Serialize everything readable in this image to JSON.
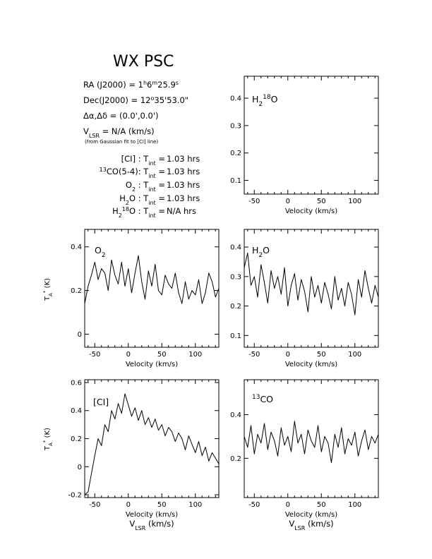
{
  "source": {
    "name": "WX PSC",
    "ra": "RA (J2000) = 1h6m25.9s",
    "dec": "Dec(J2000) = 12°35'53.0\"",
    "offset": "Δα,Δδ = (0.0',0.0')",
    "vlsr": "VLSR = N/A (km/s)",
    "vlsr_note": "(from Gaussian fit to [CI] line)"
  },
  "integrations": [
    {
      "line": "[CI]",
      "value": "1.03 hrs"
    },
    {
      "line": "13CO(5-4)",
      "value": "1.03 hrs"
    },
    {
      "line": "O2",
      "value": "1.03 hrs"
    },
    {
      "line": "H2O",
      "value": "1.03 hrs"
    },
    {
      "line": "H2 18O",
      "value": "N/A hrs"
    }
  ],
  "axis_text": {
    "x_label": "Velocity (km/s)",
    "x_bottom_label": "VLSR (km/s)",
    "y_label": "TA* (K)"
  },
  "chart_data": [
    {
      "type": "line",
      "label": "H2 18O",
      "panel": "top-right",
      "xlim": [
        -65,
        135
      ],
      "ylim": [
        0.05,
        0.48
      ],
      "xticks": [
        -50,
        0,
        50,
        100
      ],
      "yticks": [
        0.1,
        0.2,
        0.3,
        0.4
      ],
      "series": []
    },
    {
      "type": "line",
      "label": "O2",
      "panel": "middle-left",
      "xlim": [
        -65,
        135
      ],
      "ylim": [
        -0.06,
        0.48
      ],
      "xticks": [
        -50,
        0,
        50,
        100
      ],
      "yticks": [
        0,
        0.2,
        0.4
      ],
      "series": [
        {
          "x": [
            -65,
            -60,
            -55,
            -50,
            -45,
            -40,
            -35,
            -30,
            -25,
            -20,
            -15,
            -10,
            -5,
            0,
            5,
            10,
            15,
            20,
            25,
            30,
            35,
            40,
            45,
            50,
            55,
            60,
            65,
            70,
            75,
            80,
            85,
            90,
            95,
            100,
            105,
            110,
            115,
            120,
            125,
            130,
            135
          ],
          "y": [
            0.14,
            0.22,
            0.27,
            0.33,
            0.25,
            0.3,
            0.28,
            0.2,
            0.34,
            0.27,
            0.23,
            0.33,
            0.22,
            0.3,
            0.19,
            0.28,
            0.36,
            0.24,
            0.16,
            0.29,
            0.22,
            0.32,
            0.2,
            0.18,
            0.27,
            0.23,
            0.21,
            0.28,
            0.19,
            0.14,
            0.24,
            0.16,
            0.2,
            0.18,
            0.25,
            0.14,
            0.19,
            0.28,
            0.24,
            0.17,
            0.21
          ]
        }
      ]
    },
    {
      "type": "line",
      "label": "H2O",
      "panel": "middle-right",
      "xlim": [
        -65,
        135
      ],
      "ylim": [
        0.06,
        0.46
      ],
      "xticks": [
        -50,
        0,
        50,
        100
      ],
      "yticks": [
        0.1,
        0.2,
        0.3,
        0.4
      ],
      "series": [
        {
          "x": [
            -65,
            -60,
            -55,
            -50,
            -45,
            -40,
            -35,
            -30,
            -25,
            -20,
            -15,
            -10,
            -5,
            0,
            5,
            10,
            15,
            20,
            25,
            30,
            35,
            40,
            45,
            50,
            55,
            60,
            65,
            70,
            75,
            80,
            85,
            90,
            95,
            100,
            105,
            110,
            115,
            120,
            125,
            130,
            135
          ],
          "y": [
            0.33,
            0.38,
            0.27,
            0.3,
            0.23,
            0.34,
            0.28,
            0.21,
            0.32,
            0.26,
            0.3,
            0.24,
            0.33,
            0.2,
            0.27,
            0.31,
            0.22,
            0.29,
            0.25,
            0.18,
            0.3,
            0.23,
            0.27,
            0.21,
            0.28,
            0.24,
            0.19,
            0.3,
            0.22,
            0.26,
            0.2,
            0.28,
            0.24,
            0.17,
            0.29,
            0.23,
            0.32,
            0.26,
            0.21,
            0.27,
            0.23
          ]
        }
      ]
    },
    {
      "type": "line",
      "label": "[CI]",
      "panel": "bottom-left",
      "xlim": [
        -65,
        135
      ],
      "ylim": [
        -0.22,
        0.62
      ],
      "xticks": [
        -50,
        0,
        50,
        100
      ],
      "yticks": [
        -0.2,
        0,
        0.2,
        0.4,
        0.6
      ],
      "series": [
        {
          "x": [
            -65,
            -60,
            -55,
            -50,
            -45,
            -40,
            -35,
            -30,
            -25,
            -20,
            -15,
            -10,
            -5,
            0,
            5,
            10,
            15,
            20,
            25,
            30,
            35,
            40,
            45,
            50,
            55,
            60,
            65,
            70,
            75,
            80,
            85,
            90,
            95,
            100,
            105,
            110,
            115,
            120,
            125,
            130,
            135
          ],
          "y": [
            -0.2,
            -0.18,
            -0.05,
            0.08,
            0.2,
            0.15,
            0.3,
            0.25,
            0.4,
            0.34,
            0.45,
            0.38,
            0.52,
            0.44,
            0.36,
            0.42,
            0.33,
            0.4,
            0.3,
            0.35,
            0.28,
            0.34,
            0.26,
            0.3,
            0.22,
            0.28,
            0.25,
            0.18,
            0.24,
            0.2,
            0.12,
            0.22,
            0.16,
            0.1,
            0.18,
            0.08,
            0.14,
            0.04,
            0.1,
            0.06,
            0.02
          ]
        }
      ]
    },
    {
      "type": "line",
      "label": "13CO",
      "panel": "bottom-right",
      "xlim": [
        -65,
        135
      ],
      "ylim": [
        0.02,
        0.56
      ],
      "xticks": [
        -50,
        0,
        50,
        100
      ],
      "yticks": [
        0.2,
        0.4
      ],
      "series": [
        {
          "x": [
            -65,
            -60,
            -55,
            -50,
            -45,
            -40,
            -35,
            -30,
            -25,
            -20,
            -15,
            -10,
            -5,
            0,
            5,
            10,
            15,
            20,
            25,
            30,
            35,
            40,
            45,
            50,
            55,
            60,
            65,
            70,
            75,
            80,
            85,
            90,
            95,
            100,
            105,
            110,
            115,
            120,
            125,
            130,
            135
          ],
          "y": [
            0.3,
            0.25,
            0.35,
            0.22,
            0.31,
            0.27,
            0.36,
            0.24,
            0.32,
            0.28,
            0.21,
            0.34,
            0.26,
            0.3,
            0.23,
            0.37,
            0.27,
            0.31,
            0.22,
            0.33,
            0.28,
            0.25,
            0.35,
            0.23,
            0.3,
            0.27,
            0.18,
            0.31,
            0.25,
            0.34,
            0.22,
            0.29,
            0.26,
            0.32,
            0.21,
            0.28,
            0.33,
            0.24,
            0.3,
            0.27,
            0.31
          ]
        }
      ]
    }
  ]
}
